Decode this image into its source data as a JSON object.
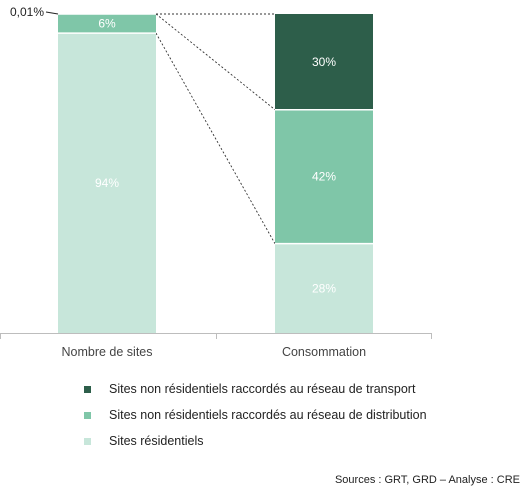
{
  "chart_data": {
    "type": "bar",
    "stacked": true,
    "categories": [
      "Nombre de sites",
      "Consommation"
    ],
    "series": [
      {
        "name": "Sites non résidentiels raccordés au réseau de transport",
        "color": "#2d5e4a",
        "values": [
          0.01,
          30
        ],
        "labels": [
          "",
          "30%"
        ]
      },
      {
        "name": "Sites non résidentiels raccordés au réseau de distribution",
        "color": "#7fc6a8",
        "values": [
          6,
          42
        ],
        "labels": [
          "6%",
          "42%"
        ]
      },
      {
        "name": "Sites résidentiels",
        "color": "#c7e6da",
        "values": [
          94,
          28
        ],
        "labels": [
          "94%",
          "28%"
        ]
      }
    ],
    "annotations": [
      {
        "text": "0,01%",
        "category": "Nombre de sites",
        "series": "Sites non résidentiels raccordés au réseau de transport"
      }
    ],
    "ylim": [
      0,
      100
    ],
    "grid": false,
    "legend_position": "bottom",
    "xlabel": "",
    "ylabel": ""
  },
  "source": "Sources : GRT, GRD – Analyse : CRE"
}
